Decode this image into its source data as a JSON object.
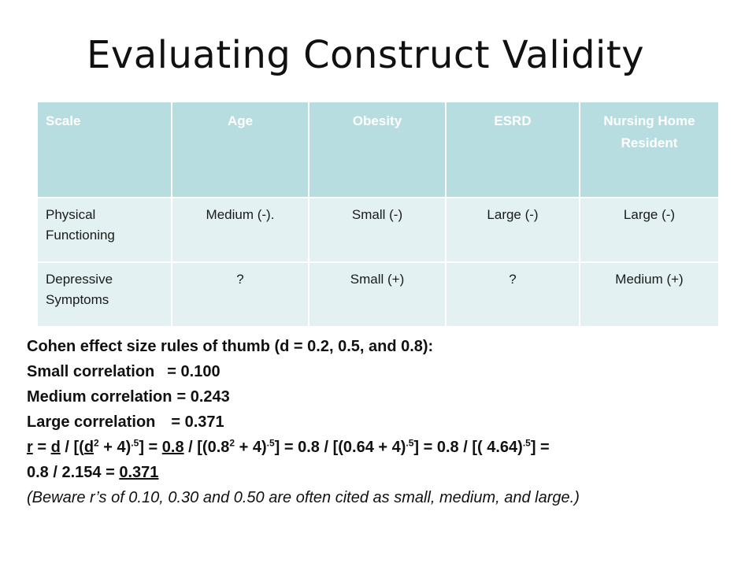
{
  "slide": {
    "title": "Evaluating Construct Validity"
  },
  "table": {
    "headers": [
      "Scale",
      "Age",
      "Obesity",
      "ESRD",
      "Nursing Home Resident"
    ],
    "rows": [
      {
        "label": "Physical Functioning",
        "cells": [
          "Medium (-).",
          "Small (-)",
          "Large (-)",
          "Large (-)"
        ]
      },
      {
        "label": "Depressive Symptoms",
        "cells": [
          "?",
          "Small (+)",
          "?",
          "Medium (+)"
        ]
      }
    ]
  },
  "notes": {
    "heading": "Cohen effect size rules of thumb (d = 0.2, 0.5, and 0.8):",
    "small_label": "Small correlation",
    "small_value": "= 0.100",
    "medium_label": "Medium correlation",
    "medium_value": "= 0.243",
    "large_label": "Large correlation",
    "large_value": "= 0.371",
    "formula": {
      "r": "r",
      "eq1": " = ",
      "d": "d",
      "p1": " / [(",
      "d2": "d",
      "sup2": "2",
      "p2": " + 4)",
      "sup5": ".5",
      "p3": "]  = ",
      "v08": "0.8",
      "p4": " / [(0.8",
      "p5": " + 4)",
      "p6": "] = 0.8 / [(0.64 + 4)",
      "p7": "] = 0.8 / [( 4.64)",
      "p8": "] =",
      "line2a": "0.8 / 2.154 = ",
      "result": "0.371"
    },
    "caveat": "(Beware r’s of 0.10, 0.30 and 0.50 are often cited as small, medium, and large.)"
  }
}
